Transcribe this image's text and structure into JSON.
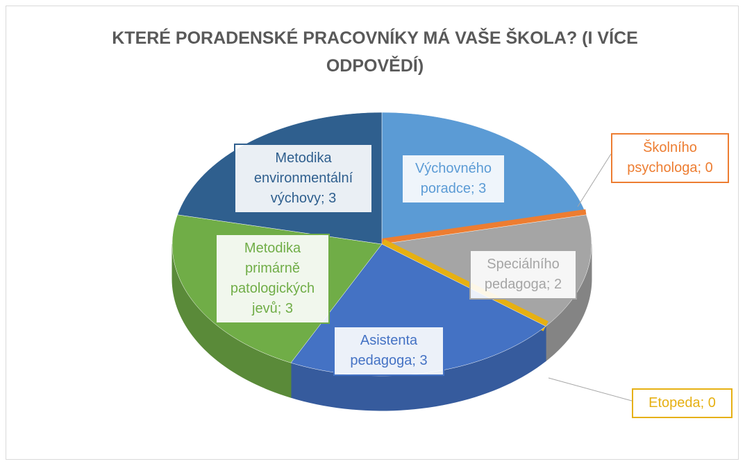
{
  "chart_data": {
    "type": "pie3d",
    "title": "KTERÉ PORADENSKÉ PRACOVNÍKY MÁ VAŠE ŠKOLA? (I VÍCE ODPOVĚDÍ)",
    "categories": [
      "Výchovného poradce",
      "Školního psychologa",
      "Speciálního pedagoga",
      "Etopeda",
      "Asistenta pedagoga",
      "Metodika primárně patologických jevů",
      "Metodika environmentální výchovy"
    ],
    "values": [
      3,
      0,
      2,
      0,
      3,
      3,
      3
    ],
    "value_labels": [
      "Výchovného poradce; 3",
      "Školního psychologa; 0",
      "Speciálního pedagoga; 2",
      "Etopeda; 0",
      "Asistenta pedagoga; 3",
      "Metodika primárně patologických jevů; 3",
      "Metodika environmentální výchovy; 3"
    ],
    "colors": [
      "#5b9bd5",
      "#ed7d31",
      "#a5a5a5",
      "#e6b012",
      "#4472c4",
      "#70ad47",
      "#2f5f8e"
    ]
  }
}
